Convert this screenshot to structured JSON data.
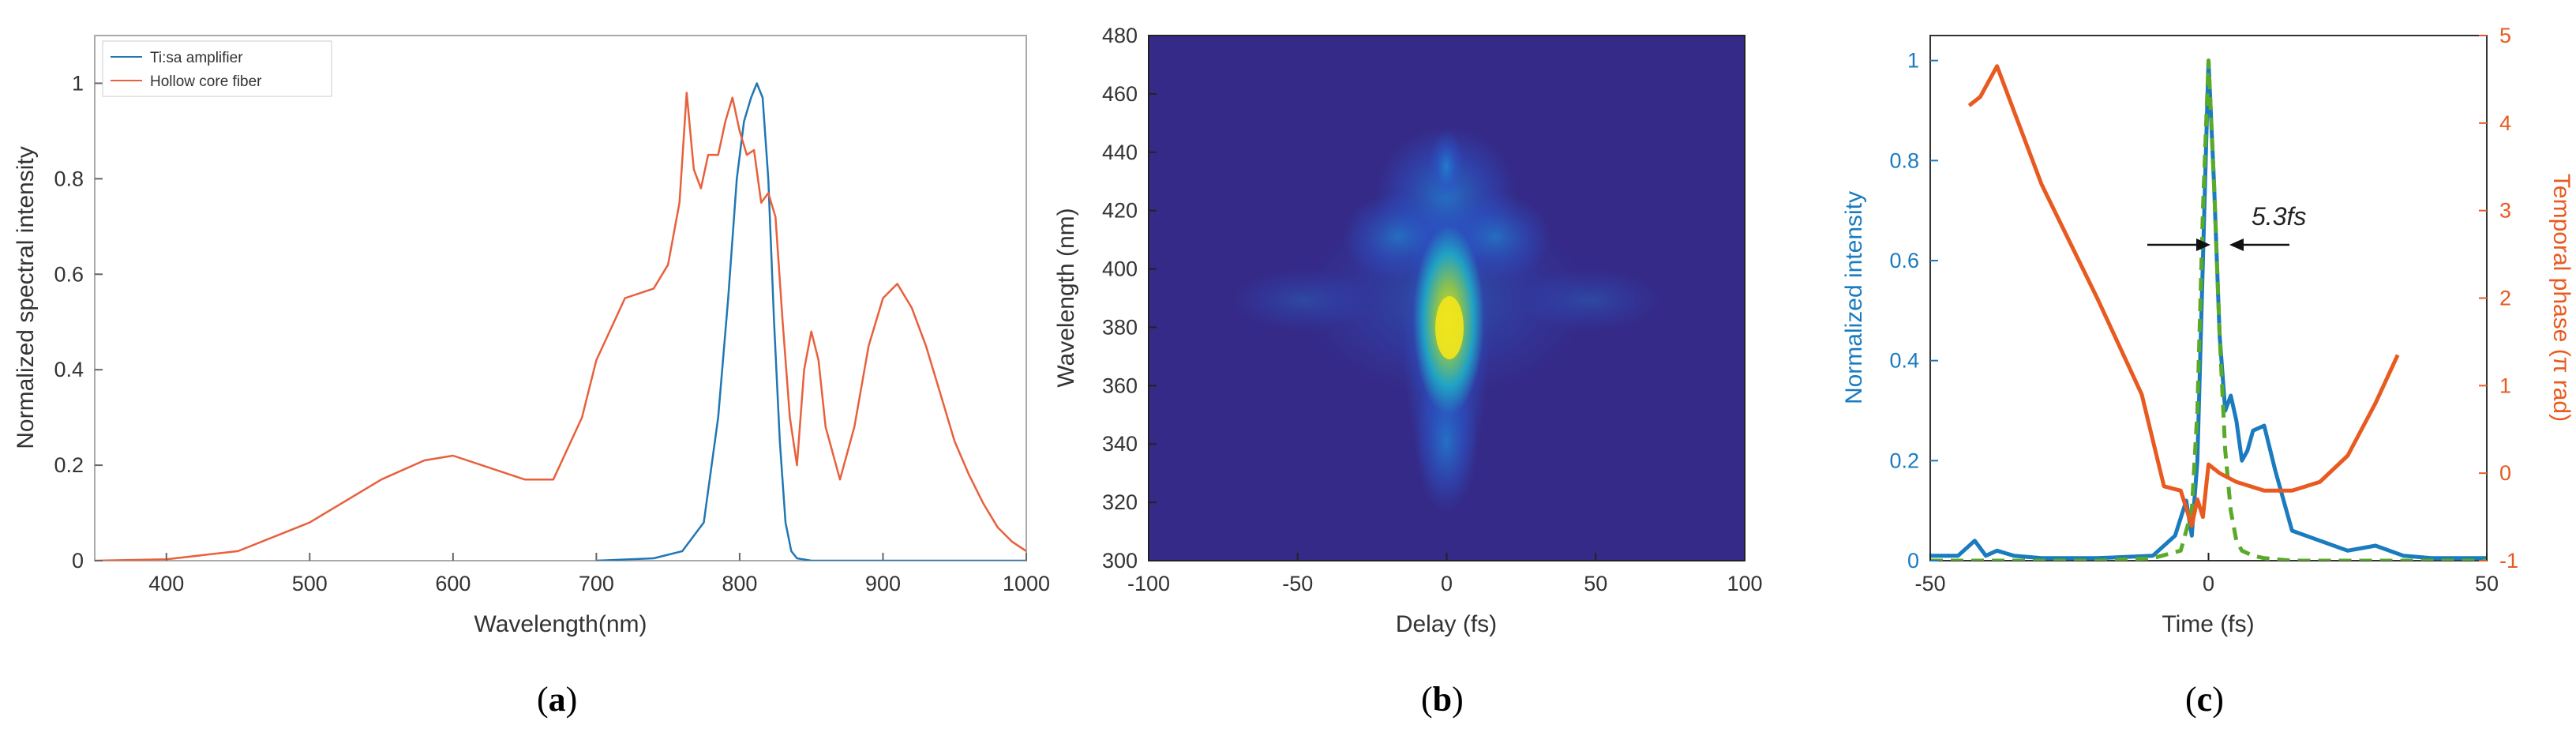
{
  "captions": {
    "a": "a",
    "b": "b",
    "c": "c"
  },
  "chart_data": [
    {
      "panel": "a",
      "type": "line",
      "xlabel": "Wavelength(nm)",
      "ylabel": "Normalized spectral intensity",
      "xlim": [
        350,
        1000
      ],
      "ylim": [
        0,
        1.1
      ],
      "xticks": [
        400,
        500,
        600,
        700,
        800,
        900,
        1000
      ],
      "yticks": [
        0,
        0.2,
        0.4,
        0.6,
        0.8,
        1
      ],
      "legend_position": "top-left",
      "series": [
        {
          "name": "Ti:sa amplifier",
          "color": "#1f77b4",
          "x": [
            700,
            740,
            760,
            775,
            785,
            792,
            798,
            803,
            808,
            812,
            816,
            820,
            824,
            828,
            832,
            836,
            840,
            850,
            1000
          ],
          "y": [
            0,
            0.005,
            0.02,
            0.08,
            0.3,
            0.55,
            0.8,
            0.92,
            0.97,
            1.0,
            0.97,
            0.8,
            0.5,
            0.25,
            0.08,
            0.02,
            0.005,
            0,
            0
          ]
        },
        {
          "name": "Hollow core fiber",
          "color": "#e8603c",
          "x": [
            350,
            400,
            450,
            500,
            550,
            580,
            600,
            620,
            650,
            670,
            690,
            700,
            720,
            740,
            750,
            758,
            763,
            768,
            773,
            778,
            785,
            790,
            795,
            800,
            805,
            810,
            815,
            820,
            825,
            830,
            835,
            840,
            845,
            850,
            855,
            860,
            870,
            880,
            890,
            900,
            910,
            920,
            930,
            940,
            950,
            960,
            970,
            980,
            990,
            1000
          ],
          "y": [
            0,
            0.003,
            0.02,
            0.08,
            0.17,
            0.21,
            0.22,
            0.2,
            0.17,
            0.17,
            0.3,
            0.42,
            0.55,
            0.57,
            0.62,
            0.75,
            0.98,
            0.82,
            0.78,
            0.85,
            0.85,
            0.92,
            0.97,
            0.9,
            0.85,
            0.86,
            0.75,
            0.77,
            0.72,
            0.5,
            0.3,
            0.2,
            0.4,
            0.48,
            0.42,
            0.28,
            0.17,
            0.28,
            0.45,
            0.55,
            0.58,
            0.53,
            0.45,
            0.35,
            0.25,
            0.18,
            0.12,
            0.07,
            0.04,
            0.02
          ]
        }
      ]
    },
    {
      "panel": "b",
      "type": "heatmap",
      "xlabel": "Delay (fs)",
      "ylabel": "Wavelength (nm)",
      "xlim": [
        -100,
        100
      ],
      "ylim": [
        300,
        480
      ],
      "xticks": [
        -100,
        -50,
        0,
        50,
        100
      ],
      "yticks": [
        300,
        320,
        340,
        360,
        380,
        400,
        420,
        440,
        460,
        480
      ],
      "colormap": "parula",
      "peak": {
        "delay": 0,
        "wavelength": 398
      }
    },
    {
      "panel": "c",
      "type": "line",
      "xlabel": "Time (fs)",
      "ylabel": "Normalized intensity",
      "ylabel_right": "Temporal phase (π rad)",
      "xlim": [
        -50,
        50
      ],
      "ylim": [
        0,
        1.05
      ],
      "ylim_right": [
        -1,
        5
      ],
      "xticks": [
        -50,
        0,
        50
      ],
      "yticks": [
        0,
        0.2,
        0.4,
        0.6,
        0.8,
        1
      ],
      "yticks_right": [
        -1,
        0,
        1,
        2,
        3,
        4,
        5
      ],
      "annotation": "5.3fs",
      "series": [
        {
          "role": "intensity",
          "color": "#1a7bbf",
          "axis": "left",
          "x": [
            -50,
            -45,
            -42,
            -40,
            -38,
            -35,
            -30,
            -20,
            -10,
            -6,
            -4,
            -3,
            -2,
            -1,
            0,
            1,
            2,
            3,
            4,
            5,
            6,
            7,
            8,
            10,
            12,
            15,
            20,
            25,
            30,
            35,
            40,
            50
          ],
          "y": [
            0.01,
            0.01,
            0.04,
            0.01,
            0.02,
            0.01,
            0.005,
            0.005,
            0.01,
            0.05,
            0.12,
            0.05,
            0.2,
            0.6,
            1.0,
            0.75,
            0.45,
            0.3,
            0.33,
            0.28,
            0.2,
            0.22,
            0.26,
            0.27,
            0.18,
            0.06,
            0.04,
            0.02,
            0.03,
            0.01,
            0.005,
            0.005
          ]
        },
        {
          "role": "fit",
          "color": "#5aaa2a",
          "axis": "left",
          "dash": true,
          "x": [
            -50,
            -20,
            -10,
            -5,
            -3,
            -2,
            -1,
            0,
            1,
            2,
            3,
            4,
            5,
            6,
            8,
            10,
            15,
            25,
            35,
            50
          ],
          "y": [
            0,
            0,
            0.005,
            0.02,
            0.1,
            0.3,
            0.7,
            1.0,
            0.75,
            0.45,
            0.22,
            0.1,
            0.04,
            0.02,
            0.01,
            0.005,
            0,
            0,
            0,
            0
          ]
        },
        {
          "role": "phase",
          "color": "#e85a20",
          "axis": "right",
          "x": [
            -43,
            -41,
            -38,
            -30,
            -20,
            -12,
            -8,
            -5,
            -3,
            -2,
            -1,
            0,
            2,
            5,
            10,
            15,
            20,
            25,
            30,
            34
          ],
          "y": [
            4.2,
            4.3,
            4.65,
            3.3,
            2.0,
            0.9,
            -0.15,
            -0.2,
            -0.6,
            -0.3,
            -0.5,
            0.1,
            0.0,
            -0.1,
            -0.2,
            -0.2,
            -0.1,
            0.2,
            0.8,
            1.35
          ]
        }
      ]
    }
  ]
}
